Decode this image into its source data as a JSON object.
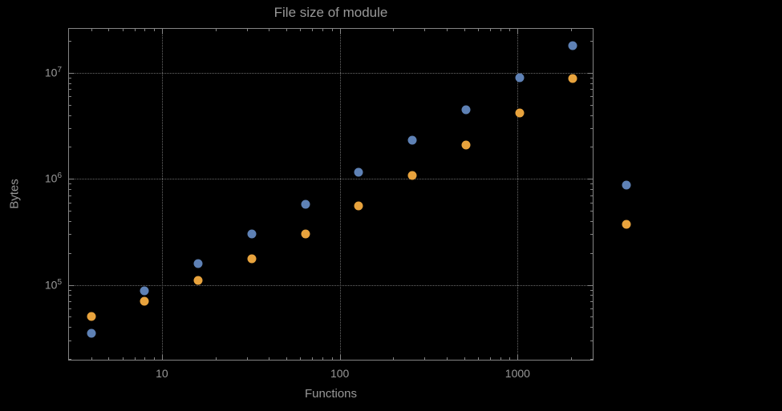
{
  "chart_data": {
    "type": "scatter",
    "title": "File size of module",
    "xlabel": "Functions",
    "ylabel": "Bytes",
    "xscale": "log",
    "yscale": "log",
    "xlim": [
      3,
      2700
    ],
    "ylim": [
      19000,
      26000000
    ],
    "x_ticks": [
      10,
      100,
      1000
    ],
    "x_tick_labels": [
      "10",
      "100",
      "1000"
    ],
    "y_ticks": [
      100000,
      1000000,
      10000000
    ],
    "y_tick_exponents": [
      5,
      6,
      7
    ],
    "grid": "dotted",
    "legend": "none",
    "colors": {
      "series1": "#5e81b5",
      "series2": "#e8a33d",
      "frame": "#848484",
      "grid": "#6a6a6a",
      "text": "#989898",
      "background": "#000000"
    },
    "series": [
      {
        "name": "series1",
        "color": "#5e81b5",
        "points": [
          [
            4,
            35000
          ],
          [
            8,
            88000
          ],
          [
            16,
            160000
          ],
          [
            32,
            300000
          ],
          [
            64,
            580000
          ],
          [
            128,
            1150000
          ],
          [
            256,
            2300000
          ],
          [
            512,
            4500000
          ],
          [
            1024,
            9000000
          ],
          [
            2048,
            18000000
          ],
          [
            4096,
            870000
          ]
        ]
      },
      {
        "name": "series2",
        "color": "#e8a33d",
        "points": [
          [
            4,
            50000
          ],
          [
            8,
            70000
          ],
          [
            16,
            110000
          ],
          [
            32,
            175000
          ],
          [
            64,
            300000
          ],
          [
            128,
            560000
          ],
          [
            256,
            1080000
          ],
          [
            512,
            2100000
          ],
          [
            1024,
            4200000
          ],
          [
            2048,
            8800000
          ],
          [
            4096,
            370000
          ]
        ]
      }
    ]
  }
}
